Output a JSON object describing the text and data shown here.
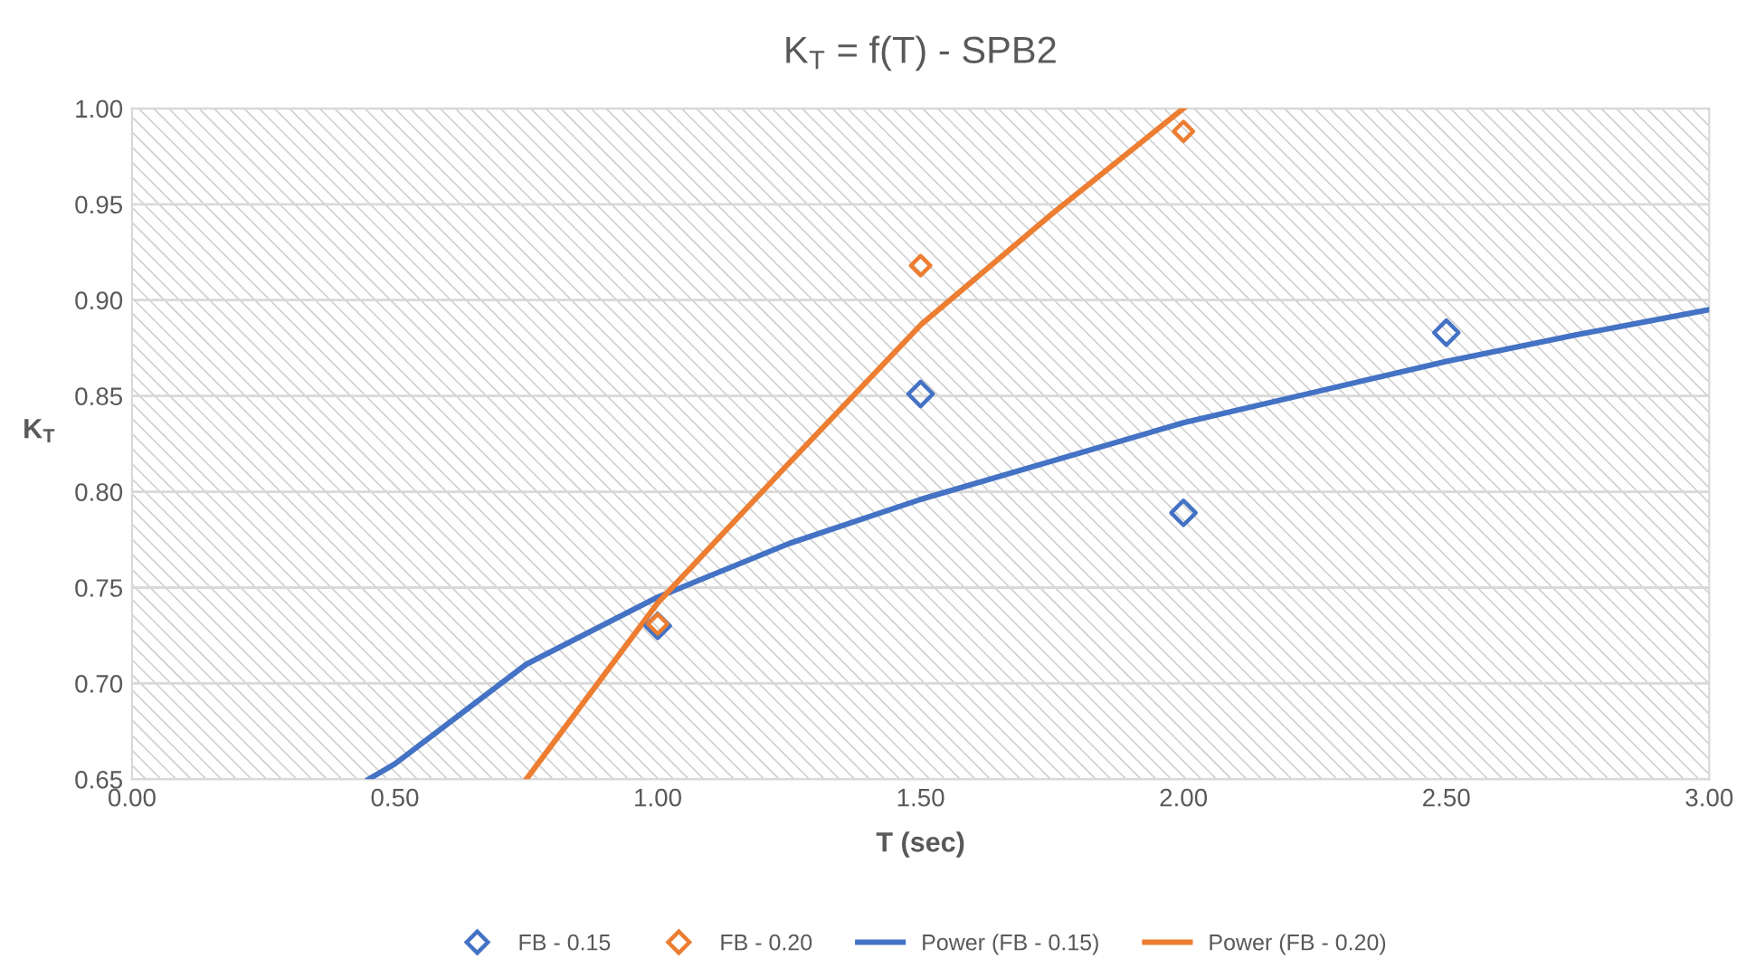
{
  "chart_data": {
    "type": "scatter",
    "title": "K$_{T}$ = f(T) - SPB2",
    "xlabel": "T (sec)",
    "ylabel": "K$_{T}$",
    "xlim": [
      0,
      3
    ],
    "ylim": [
      0.65,
      1.0
    ],
    "xticks": [
      {
        "value": 0,
        "label": "0.00"
      },
      {
        "value": 0.5,
        "label": "0.50"
      },
      {
        "value": 1,
        "label": "1.00"
      },
      {
        "value": 1.5,
        "label": "1.50"
      },
      {
        "value": 2,
        "label": "2.00"
      },
      {
        "value": 2.5,
        "label": "2.50"
      },
      {
        "value": 3,
        "label": "3.00"
      }
    ],
    "yticks": [
      0.65,
      {
        "value": 0.7,
        "label": "0.70"
      },
      0.75,
      {
        "value": 0.8,
        "label": "0.80"
      },
      0.85,
      {
        "value": 0.9,
        "label": "0.90"
      },
      0.95,
      {
        "value": 1.0,
        "label": "1.00"
      }
    ],
    "grid": "y",
    "legend": "bottom",
    "series": [
      {
        "name": "FB - 0.15",
        "marker": "diamond",
        "color": "#4472c4",
        "x": [
          1.0,
          1.5,
          2.0,
          2.5
        ],
        "values": [
          0.73,
          0.851,
          0.789,
          0.883
        ]
      },
      {
        "name": "FB - 0.20",
        "marker": "diamond",
        "color": "#ed7d31",
        "x": [
          1.0,
          1.5,
          2.0
        ],
        "values": [
          0.731,
          0.918,
          0.988
        ]
      },
      {
        "name": "Power (FB - 0.15)",
        "type": "line",
        "line_style": "solid",
        "color": "#4472c4",
        "x": [
          0.45,
          0.5,
          0.75,
          1.0,
          1.25,
          1.5,
          1.75,
          2.0,
          2.25,
          2.5,
          2.75,
          3.0
        ],
        "values": [
          0.65,
          0.658,
          0.71,
          0.745,
          0.773,
          0.796,
          0.816,
          0.836,
          0.852,
          0.868,
          0.882,
          0.895
        ]
      },
      {
        "name": "Power (FB - 0.20)",
        "type": "line",
        "line_style": "solid",
        "color": "#ed7d31",
        "x": [
          0.75,
          1.0,
          1.25,
          1.5,
          1.75,
          2.0
        ],
        "values": [
          0.65,
          0.742,
          0.815,
          0.887,
          0.945,
          1.0
        ]
      }
    ]
  }
}
